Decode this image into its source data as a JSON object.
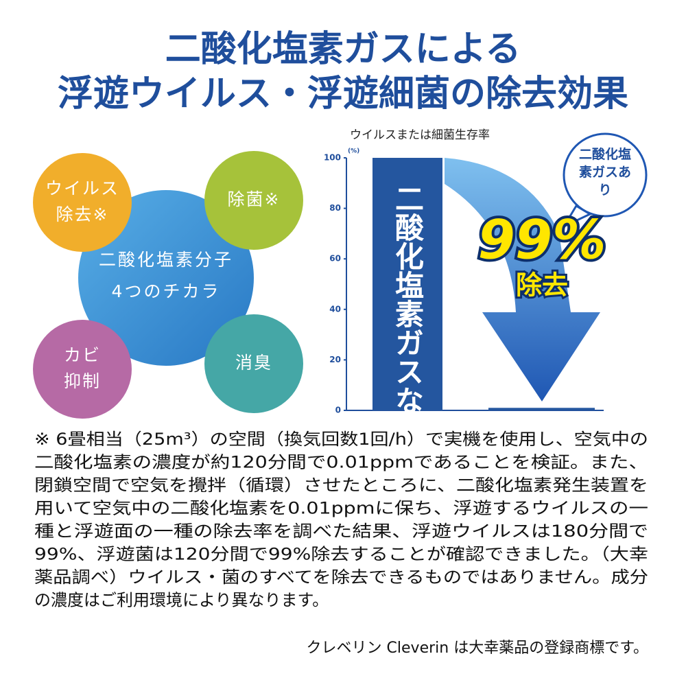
{
  "header": {
    "title_lines": [
      "二酸化塩素ガスによる",
      "浮遊ウイルス・浮遊細菌の除去効果"
    ]
  },
  "diagram": {
    "center": {
      "lines": [
        "二酸化塩素分子",
        "4つのチカラ"
      ]
    },
    "nodes": [
      {
        "lines": [
          "ウイルス",
          "除去※"
        ]
      },
      {
        "lines": [
          "除菌※"
        ]
      },
      {
        "lines": [
          "カビ",
          "抑制"
        ]
      },
      {
        "lines": [
          "消臭"
        ]
      }
    ]
  },
  "chart_data": {
    "type": "bar",
    "title": "ウイルスまたは細菌生存率",
    "y_unit": "(%)",
    "categories": [
      "二酸化塩素ガスなし",
      "二酸化塩素ガスあり"
    ],
    "values": [
      100,
      1
    ],
    "color": "#24569f",
    "ylim": [
      0,
      100
    ],
    "yticks": [
      0,
      20,
      40,
      60,
      80,
      100
    ],
    "annotations": [
      "99%",
      "除去"
    ]
  },
  "footnote": {
    "lines": [
      "※ 6畳相当（25m³）の空間（換気回数1回/h）で実機を使用し、空気中の",
      "二酸化塩素の濃度が約120分間で0.01ppmであることを検証。また、",
      "閉鎖空間で空気を攪拌（循環）させたところに、二酸化塩素発生装置を",
      "用いて空気中の二酸化塩素を0.01ppmに保ち、浮遊するウイルスの一",
      "種と浮遊面の一種の除去率を調べた結果、浮遊ウイルスは180分間で",
      "99%、浮遊菌は120分間で99%除去することが確認できました。（大幸",
      "薬品調べ）ウイルス・菌のすべてを除去できるものではありません。成分",
      "の濃度はご利用環境により異なります。"
    ],
    "credit": "クレベリン Cleverin は大幸薬品の登録商標です。"
  }
}
